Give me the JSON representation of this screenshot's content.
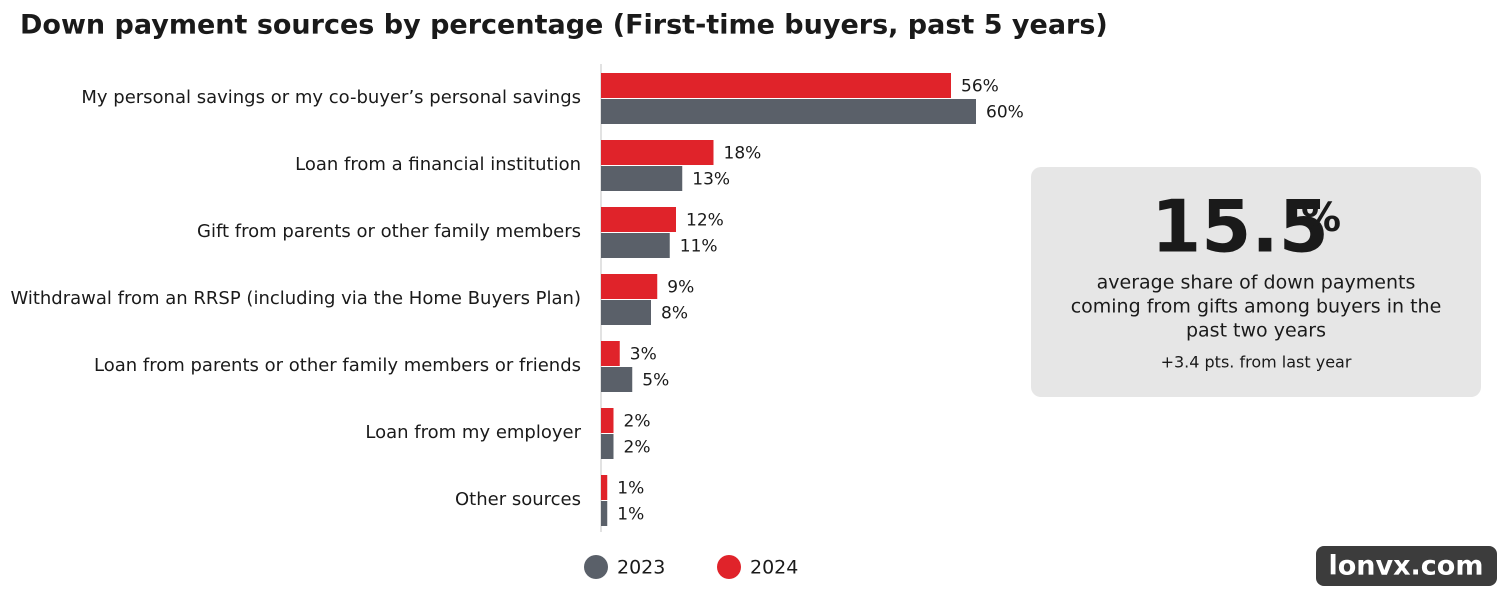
{
  "chart_data": {
    "type": "hbar",
    "title": "Down payment sources by percentage (First-time buyers, past 5 years)",
    "categories": [
      "My personal savings or my co-buyer’s  personal savings",
      "Loan from a financial institution",
      "Gift from parents or other family members",
      "Withdrawal from an RRSP (including via the Home Buyers Plan)",
      "Loan from parents or other family members or friends",
      "Loan from my employer",
      "Other sources"
    ],
    "series": [
      {
        "name": "2023",
        "color": "#5a6069",
        "values": [
          60,
          13,
          11,
          8,
          5,
          2,
          1
        ],
        "value_labels": [
          "60%",
          "13%",
          "11%",
          "8%",
          "5%",
          "2%",
          "1%"
        ]
      },
      {
        "name": "2024",
        "color": "#e0232a",
        "values": [
          56,
          18,
          12,
          9,
          3,
          2,
          1
        ],
        "value_labels": [
          "56%",
          "18%",
          "12%",
          "9%",
          "3%",
          "2%",
          "1%"
        ]
      }
    ],
    "xlim": [
      0,
      60
    ],
    "legend": "bottom",
    "callout": {
      "headline": "15.5",
      "headline_unit": "%",
      "description": [
        "average share of down payments",
        "coming from gifts among buyers in the",
        "past two years"
      ],
      "note": "+3.4 pts. from last year"
    }
  },
  "watermark": "lonvx.com"
}
